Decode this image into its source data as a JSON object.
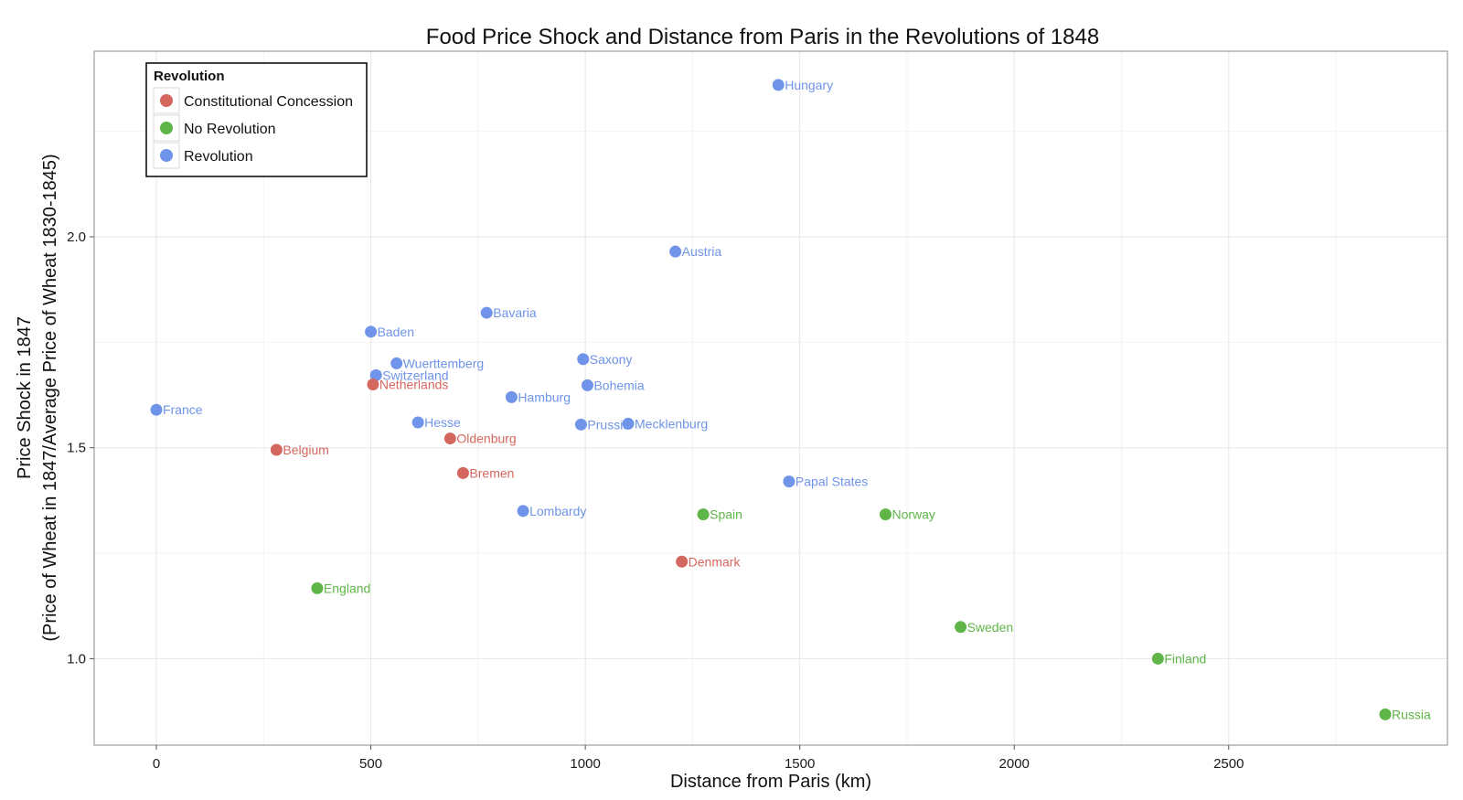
{
  "chart_data": {
    "type": "scatter",
    "title": "Food Price Shock and Distance from Paris in the Revolutions of 1848",
    "xlabel": "Distance from Paris (km)",
    "ylabel_line1": "Price Shock in 1847",
    "ylabel_line2": "(Price of Wheat in 1847/Average Price of Wheat 1830-1845)",
    "xlim": [
      -145,
      3010
    ],
    "ylim": [
      0.795,
      2.44
    ],
    "x_ticks": [
      0,
      500,
      1000,
      1500,
      2000,
      2500
    ],
    "x_tick_labels": [
      "0",
      "500",
      "1000",
      "1500",
      "2000",
      "2500"
    ],
    "y_ticks": [
      1.0,
      1.5,
      2.0
    ],
    "y_tick_labels": [
      "1.0",
      "1.5",
      "2.0"
    ],
    "grid": true,
    "legend": {
      "title": "Revolution",
      "placement": "top-left",
      "entries": [
        {
          "key": "concession",
          "label": "Constitutional Concession"
        },
        {
          "key": "none",
          "label": "No Revolution"
        },
        {
          "key": "revolution",
          "label": "Revolution"
        }
      ]
    },
    "colors": {
      "concession": "#d4675e",
      "none": "#5fb548",
      "revolution": "#6f94e9"
    },
    "points": [
      {
        "label": "Hungary",
        "x": 1450,
        "y": 2.36,
        "group": "revolution"
      },
      {
        "label": "Austria",
        "x": 1210,
        "y": 1.965,
        "group": "revolution"
      },
      {
        "label": "Bavaria",
        "x": 770,
        "y": 1.82,
        "group": "revolution"
      },
      {
        "label": "Baden",
        "x": 500,
        "y": 1.775,
        "group": "revolution"
      },
      {
        "label": "Saxony",
        "x": 995,
        "y": 1.71,
        "group": "revolution"
      },
      {
        "label": "Wuerttemberg",
        "x": 560,
        "y": 1.7,
        "group": "revolution"
      },
      {
        "label": "Switzerland",
        "x": 512,
        "y": 1.672,
        "group": "revolution"
      },
      {
        "label": "Netherlands",
        "x": 505,
        "y": 1.65,
        "group": "concession"
      },
      {
        "label": "Bohemia",
        "x": 1005,
        "y": 1.648,
        "group": "revolution"
      },
      {
        "label": "Hamburg",
        "x": 828,
        "y": 1.62,
        "group": "revolution"
      },
      {
        "label": "France",
        "x": 0,
        "y": 1.59,
        "group": "revolution"
      },
      {
        "label": "Hesse",
        "x": 610,
        "y": 1.56,
        "group": "revolution"
      },
      {
        "label": "Prussia",
        "x": 990,
        "y": 1.555,
        "group": "revolution"
      },
      {
        "label": "Mecklenburg",
        "x": 1100,
        "y": 1.557,
        "group": "revolution"
      },
      {
        "label": "Oldenburg",
        "x": 685,
        "y": 1.522,
        "group": "concession"
      },
      {
        "label": "Belgium",
        "x": 280,
        "y": 1.495,
        "group": "concession"
      },
      {
        "label": "Bremen",
        "x": 715,
        "y": 1.44,
        "group": "concession"
      },
      {
        "label": "Papal States",
        "x": 1475,
        "y": 1.42,
        "group": "revolution"
      },
      {
        "label": "Lombardy",
        "x": 855,
        "y": 1.35,
        "group": "revolution"
      },
      {
        "label": "Spain",
        "x": 1275,
        "y": 1.342,
        "group": "none"
      },
      {
        "label": "Norway",
        "x": 1700,
        "y": 1.342,
        "group": "none"
      },
      {
        "label": "Denmark",
        "x": 1225,
        "y": 1.23,
        "group": "concession"
      },
      {
        "label": "England",
        "x": 375,
        "y": 1.167,
        "group": "none"
      },
      {
        "label": "Sweden",
        "x": 1875,
        "y": 1.075,
        "group": "none"
      },
      {
        "label": "Finland",
        "x": 2335,
        "y": 1.0,
        "group": "none"
      },
      {
        "label": "Russia",
        "x": 2865,
        "y": 0.868,
        "group": "none"
      }
    ]
  }
}
